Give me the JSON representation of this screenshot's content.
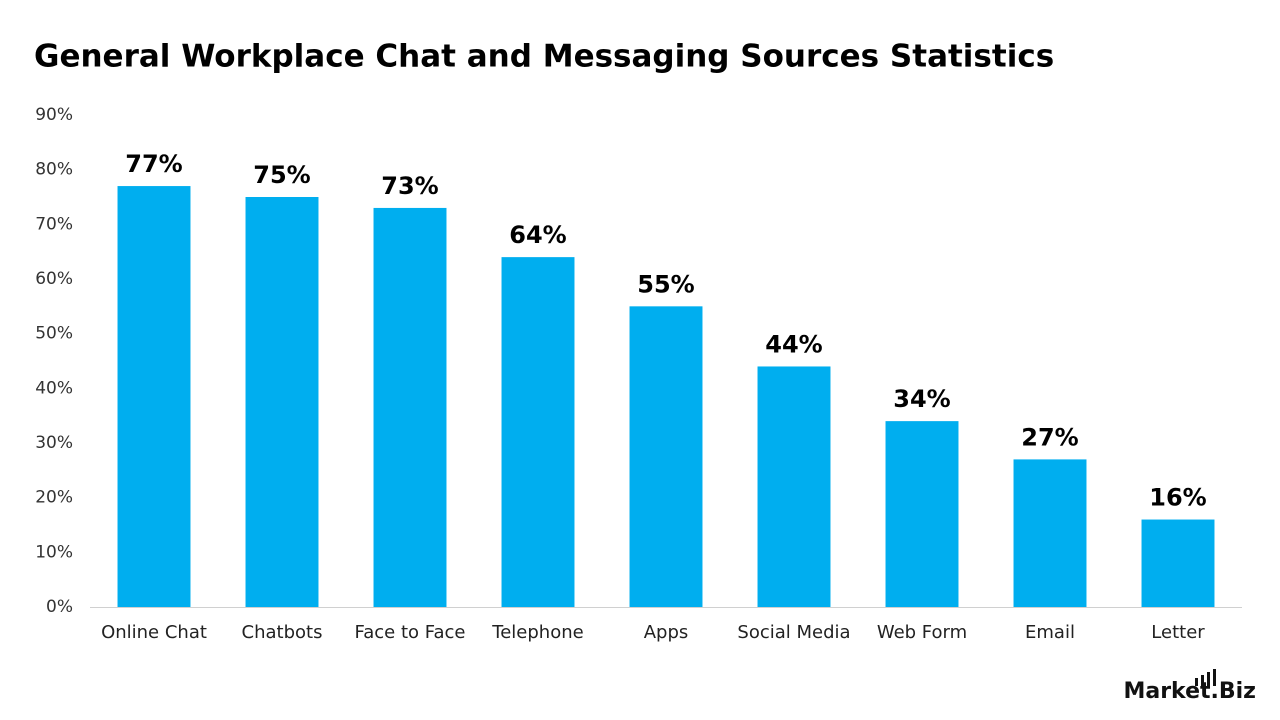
{
  "chart_data": {
    "type": "bar",
    "title": "General Workplace Chat and Messaging Sources Statistics",
    "categories": [
      "Online Chat",
      "Chatbots",
      "Face to Face",
      "Telephone",
      "Apps",
      "Social Media",
      "Web Form",
      "Email",
      "Letter"
    ],
    "values": [
      77,
      75,
      73,
      64,
      55,
      44,
      34,
      27,
      16
    ],
    "value_labels": [
      "77%",
      "75%",
      "73%",
      "64%",
      "55%",
      "44%",
      "34%",
      "27%",
      "16%"
    ],
    "color": "#00aeef",
    "ylim": [
      0,
      90
    ],
    "yticks": [
      {
        "value": 0,
        "label": "0%"
      },
      {
        "value": 10,
        "label": "10%"
      },
      {
        "value": 20,
        "label": "20%"
      },
      {
        "value": 30,
        "label": "30%"
      },
      {
        "value": 40,
        "label": "40%"
      },
      {
        "value": 50,
        "label": "50%"
      },
      {
        "value": 60,
        "label": "60%"
      },
      {
        "value": 70,
        "label": "70%"
      },
      {
        "value": 80,
        "label": "80%"
      },
      {
        "value": 90,
        "label": "90%"
      }
    ],
    "grid": false,
    "logo": "Market.Biz"
  }
}
